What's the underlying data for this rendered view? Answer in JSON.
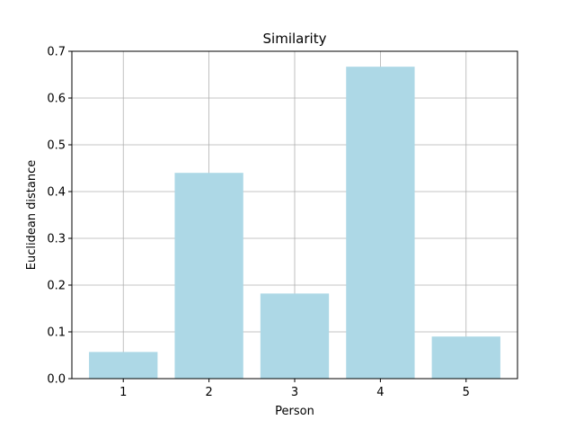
{
  "chart_data": {
    "type": "bar",
    "title": "Similarity",
    "xlabel": "Person",
    "ylabel": "Euclidean distance",
    "categories": [
      "1",
      "2",
      "3",
      "4",
      "5"
    ],
    "values": [
      0.057,
      0.44,
      0.182,
      0.667,
      0.09
    ],
    "ylim": [
      0,
      0.7
    ],
    "yticks": [
      "0.0",
      "0.1",
      "0.2",
      "0.3",
      "0.4",
      "0.5",
      "0.6",
      "0.7"
    ],
    "grid": true,
    "legend": "none",
    "colors": {
      "bar": "#add8e6",
      "grid": "#b0b0b0",
      "axis": "#000000"
    }
  }
}
